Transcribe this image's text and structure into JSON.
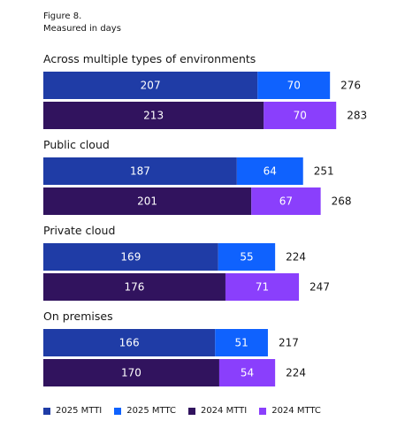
{
  "figure": {
    "title": "Figure 8.",
    "subtitle": "Measured in days"
  },
  "colors": {
    "mtti_2025": "#1f3ca6",
    "mttc_2025": "#0f62fe",
    "mtti_2024": "#31135e",
    "mttc_2024": "#8a3ffc"
  },
  "chart_data": {
    "type": "bar",
    "orientation": "horizontal",
    "stacked": true,
    "unit": "days",
    "groups": [
      {
        "label": "Across multiple types of environments",
        "rows": [
          {
            "year": "2025",
            "mtti": 207,
            "mttc": 70,
            "total": 276
          },
          {
            "year": "2024",
            "mtti": 213,
            "mttc": 70,
            "total": 283
          }
        ]
      },
      {
        "label": "Public cloud",
        "rows": [
          {
            "year": "2025",
            "mtti": 187,
            "mttc": 64,
            "total": 251
          },
          {
            "year": "2024",
            "mtti": 201,
            "mttc": 67,
            "total": 268
          }
        ]
      },
      {
        "label": "Private cloud",
        "rows": [
          {
            "year": "2025",
            "mtti": 169,
            "mttc": 55,
            "total": 224
          },
          {
            "year": "2024",
            "mtti": 176,
            "mttc": 71,
            "total": 247
          }
        ]
      },
      {
        "label": "On premises",
        "rows": [
          {
            "year": "2025",
            "mtti": 166,
            "mttc": 51,
            "total": 217
          },
          {
            "year": "2024",
            "mtti": 170,
            "mttc": 54,
            "total": 224
          }
        ]
      }
    ],
    "legend": [
      {
        "label": "2025 MTTI",
        "color": "#1f3ca6"
      },
      {
        "label": "2025 MTTC",
        "color": "#0f62fe"
      },
      {
        "label": "2024 MTTI",
        "color": "#31135e"
      },
      {
        "label": "2024 MTTC",
        "color": "#8a3ffc"
      }
    ],
    "legend_position": "bottom-left"
  }
}
